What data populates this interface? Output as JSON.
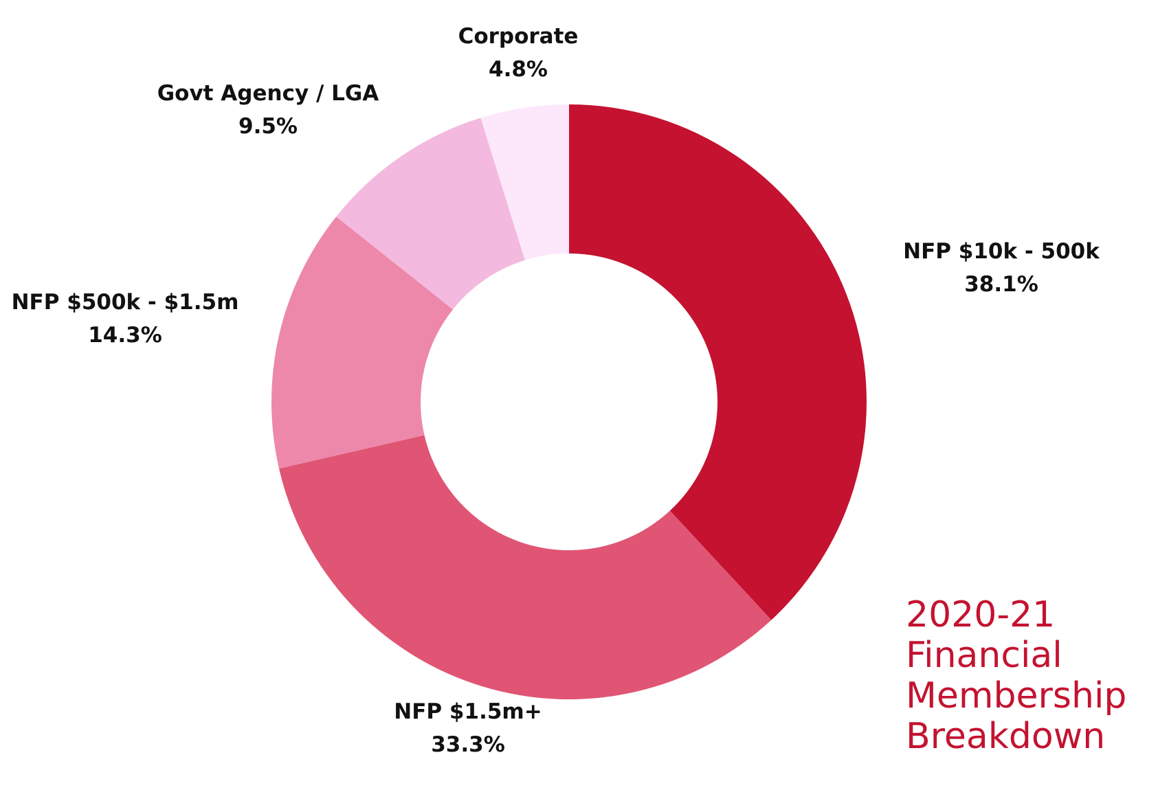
{
  "chart_data": {
    "type": "pie",
    "donut": true,
    "title_lines": [
      "2020-21",
      "Financial",
      "Membership",
      "Breakdown"
    ],
    "slices": [
      {
        "name": "NFP $10k - 500k",
        "value": 38.1,
        "value_label": "38.1%",
        "color": "#c41230"
      },
      {
        "name": "NFP $1.5m+",
        "value": 33.3,
        "value_label": "33.3%",
        "color": "#e05574"
      },
      {
        "name": "NFP $500k - $1.5m",
        "value": 14.3,
        "value_label": "14.3%",
        "color": "#ed88ab"
      },
      {
        "name": "Govt Agency / LGA",
        "value": 9.5,
        "value_label": "9.5%",
        "color": "#f4b9de"
      },
      {
        "name": "Corporate",
        "value": 4.8,
        "value_label": "4.8%",
        "color": "#fde8fb"
      }
    ],
    "legend": "none"
  }
}
